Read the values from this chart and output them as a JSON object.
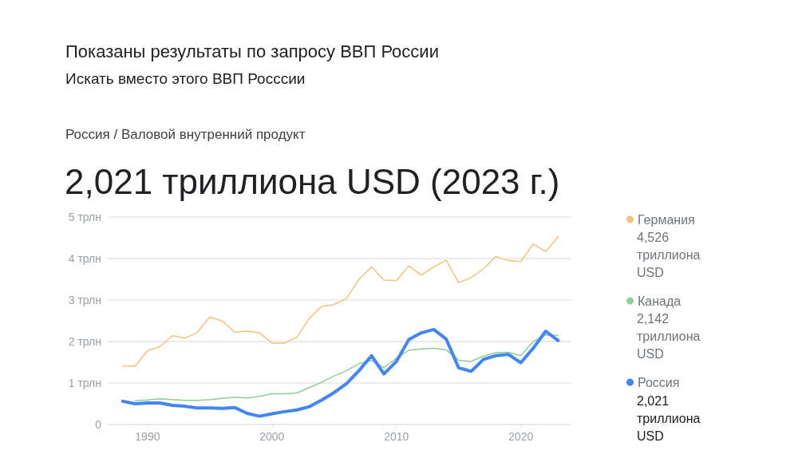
{
  "chart_data": {
    "type": "line",
    "title": "2,021 триллиона USD (2023 г.)",
    "subtitle": "Россия / Валовой внутренний продукт",
    "annotations": [
      "Показаны результаты по запросу ВВП России",
      "Искать вместо этого ВВП Росссии",
      "4,526 триллиона USD",
      "2,142 триллиона USD",
      "2,021 триллиона USD"
    ],
    "x": [
      1988,
      1989,
      1990,
      1991,
      1992,
      1993,
      1994,
      1995,
      1996,
      1997,
      1998,
      1999,
      2000,
      2001,
      2002,
      2003,
      2004,
      2005,
      2006,
      2007,
      2008,
      2009,
      2010,
      2011,
      2012,
      2013,
      2014,
      2015,
      2016,
      2017,
      2018,
      2019,
      2020,
      2021,
      2022,
      2023
    ],
    "series": [
      {
        "name": "Германия",
        "color": "#f4c37a",
        "values": [
          1.41,
          1.41,
          1.78,
          1.88,
          2.14,
          2.08,
          2.22,
          2.59,
          2.5,
          2.22,
          2.25,
          2.21,
          1.96,
          1.96,
          2.1,
          2.56,
          2.85,
          2.89,
          3.04,
          3.5,
          3.8,
          3.48,
          3.47,
          3.82,
          3.6,
          3.8,
          3.96,
          3.42,
          3.54,
          3.75,
          4.05,
          3.95,
          3.93,
          4.35,
          4.17,
          4.526
        ]
      },
      {
        "name": "Канада",
        "color": "#8fcf9c",
        "values": [
          null,
          0.57,
          0.59,
          0.62,
          0.6,
          0.58,
          0.58,
          0.6,
          0.63,
          0.66,
          0.64,
          0.68,
          0.74,
          0.74,
          0.76,
          0.89,
          1.02,
          1.17,
          1.3,
          1.47,
          1.54,
          1.37,
          1.6,
          1.79,
          1.82,
          1.84,
          1.8,
          1.55,
          1.52,
          1.65,
          1.73,
          1.74,
          1.66,
          2.0,
          2.16,
          2.142
        ]
      },
      {
        "name": "Россия",
        "color": "#4285f4",
        "values": [
          0.56,
          0.5,
          0.52,
          0.52,
          0.46,
          0.44,
          0.4,
          0.4,
          0.39,
          0.41,
          0.27,
          0.2,
          0.26,
          0.31,
          0.35,
          0.43,
          0.59,
          0.77,
          0.99,
          1.3,
          1.66,
          1.22,
          1.52,
          2.05,
          2.21,
          2.29,
          2.06,
          1.37,
          1.28,
          1.57,
          1.66,
          1.69,
          1.49,
          1.84,
          2.25,
          2.021
        ]
      }
    ],
    "xlim": [
      1986.8,
      2024
    ],
    "xticks": [
      1990,
      2000,
      2010,
      2020
    ],
    "ylim": [
      0,
      5
    ],
    "yticks": [
      0,
      {
        "value": 1,
        "label": "1 трлн"
      },
      {
        "value": 2,
        "label": "2 трлн"
      },
      {
        "value": 3,
        "label": "3 трлн"
      },
      {
        "value": 4,
        "label": "4 трлн"
      },
      {
        "value": 5,
        "label": "5 трлн"
      }
    ],
    "grid": "y",
    "legend": "right",
    "marker": "none",
    "line_style": "solid"
  }
}
